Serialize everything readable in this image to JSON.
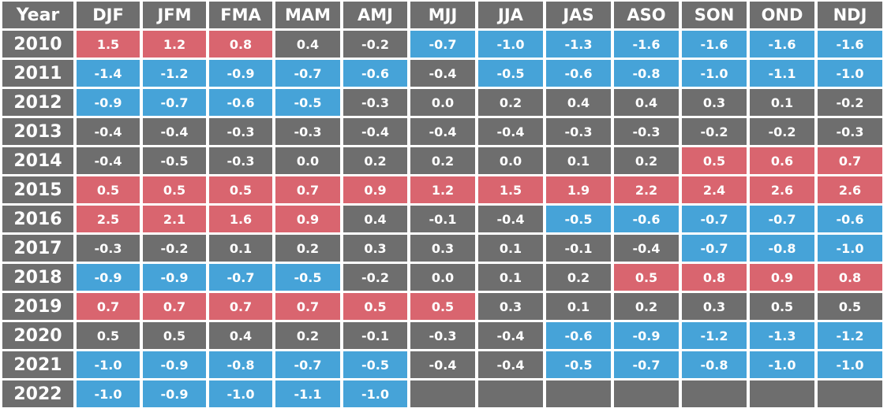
{
  "chart_data": {
    "type": "table",
    "corner_header": "Year",
    "columns": [
      "DJF",
      "JFM",
      "FMA",
      "MAM",
      "AMJ",
      "MJJ",
      "JJA",
      "JAS",
      "ASO",
      "SON",
      "OND",
      "NDJ"
    ],
    "rows": [
      {
        "year": "2010",
        "values": [
          "1.5",
          "1.2",
          "0.8",
          "0.4",
          "-0.2",
          "-0.7",
          "-1.0",
          "-1.3",
          "-1.6",
          "-1.6",
          "-1.6",
          "-1.6"
        ]
      },
      {
        "year": "2011",
        "values": [
          "-1.4",
          "-1.2",
          "-0.9",
          "-0.7",
          "-0.6",
          "-0.4",
          "-0.5",
          "-0.6",
          "-0.8",
          "-1.0",
          "-1.1",
          "-1.0"
        ]
      },
      {
        "year": "2012",
        "values": [
          "-0.9",
          "-0.7",
          "-0.6",
          "-0.5",
          "-0.3",
          "0.0",
          "0.2",
          "0.4",
          "0.4",
          "0.3",
          "0.1",
          "-0.2"
        ]
      },
      {
        "year": "2013",
        "values": [
          "-0.4",
          "-0.4",
          "-0.3",
          "-0.3",
          "-0.4",
          "-0.4",
          "-0.4",
          "-0.3",
          "-0.3",
          "-0.2",
          "-0.2",
          "-0.3"
        ]
      },
      {
        "year": "2014",
        "values": [
          "-0.4",
          "-0.5",
          "-0.3",
          "0.0",
          "0.2",
          "0.2",
          "0.0",
          "0.1",
          "0.2",
          "0.5",
          "0.6",
          "0.7"
        ]
      },
      {
        "year": "2015",
        "values": [
          "0.5",
          "0.5",
          "0.5",
          "0.7",
          "0.9",
          "1.2",
          "1.5",
          "1.9",
          "2.2",
          "2.4",
          "2.6",
          "2.6"
        ]
      },
      {
        "year": "2016",
        "values": [
          "2.5",
          "2.1",
          "1.6",
          "0.9",
          "0.4",
          "-0.1",
          "-0.4",
          "-0.5",
          "-0.6",
          "-0.7",
          "-0.7",
          "-0.6"
        ]
      },
      {
        "year": "2017",
        "values": [
          "-0.3",
          "-0.2",
          "0.1",
          "0.2",
          "0.3",
          "0.3",
          "0.1",
          "-0.1",
          "-0.4",
          "-0.7",
          "-0.8",
          "-1.0"
        ]
      },
      {
        "year": "2018",
        "values": [
          "-0.9",
          "-0.9",
          "-0.7",
          "-0.5",
          "-0.2",
          "0.0",
          "0.1",
          "0.2",
          "0.5",
          "0.8",
          "0.9",
          "0.8"
        ]
      },
      {
        "year": "2019",
        "values": [
          "0.7",
          "0.7",
          "0.7",
          "0.7",
          "0.5",
          "0.5",
          "0.3",
          "0.1",
          "0.2",
          "0.3",
          "0.5",
          "0.5"
        ]
      },
      {
        "year": "2020",
        "values": [
          "0.5",
          "0.5",
          "0.4",
          "0.2",
          "-0.1",
          "-0.3",
          "-0.4",
          "-0.6",
          "-0.9",
          "-1.2",
          "-1.3",
          "-1.2"
        ]
      },
      {
        "year": "2021",
        "values": [
          "-1.0",
          "-0.9",
          "-0.8",
          "-0.7",
          "-0.5",
          "-0.4",
          "-0.4",
          "-0.5",
          "-0.7",
          "-0.8",
          "-1.0",
          "-1.0"
        ]
      },
      {
        "year": "2022",
        "values": [
          "-1.0",
          "-0.9",
          "-1.0",
          "-1.1",
          "-1.0",
          "",
          "",
          "",
          "",
          "",
          "",
          ""
        ]
      }
    ],
    "cell_states": [
      [
        "warm",
        "warm",
        "warm",
        "neutral",
        "neutral",
        "cool",
        "cool",
        "cool",
        "cool",
        "cool",
        "cool",
        "cool"
      ],
      [
        "cool",
        "cool",
        "cool",
        "cool",
        "cool",
        "neutral",
        "cool",
        "cool",
        "cool",
        "cool",
        "cool",
        "cool"
      ],
      [
        "cool",
        "cool",
        "cool",
        "cool",
        "neutral",
        "neutral",
        "neutral",
        "neutral",
        "neutral",
        "neutral",
        "neutral",
        "neutral"
      ],
      [
        "neutral",
        "neutral",
        "neutral",
        "neutral",
        "neutral",
        "neutral",
        "neutral",
        "neutral",
        "neutral",
        "neutral",
        "neutral",
        "neutral"
      ],
      [
        "neutral",
        "neutral",
        "neutral",
        "neutral",
        "neutral",
        "neutral",
        "neutral",
        "neutral",
        "neutral",
        "warm",
        "warm",
        "warm"
      ],
      [
        "warm",
        "warm",
        "warm",
        "warm",
        "warm",
        "warm",
        "warm",
        "warm",
        "warm",
        "warm",
        "warm",
        "warm"
      ],
      [
        "warm",
        "warm",
        "warm",
        "warm",
        "neutral",
        "neutral",
        "neutral",
        "cool",
        "cool",
        "cool",
        "cool",
        "cool"
      ],
      [
        "neutral",
        "neutral",
        "neutral",
        "neutral",
        "neutral",
        "neutral",
        "neutral",
        "neutral",
        "neutral",
        "cool",
        "cool",
        "cool"
      ],
      [
        "cool",
        "cool",
        "cool",
        "cool",
        "neutral",
        "neutral",
        "neutral",
        "neutral",
        "warm",
        "warm",
        "warm",
        "warm"
      ],
      [
        "warm",
        "warm",
        "warm",
        "warm",
        "warm",
        "warm",
        "neutral",
        "neutral",
        "neutral",
        "neutral",
        "neutral",
        "neutral"
      ],
      [
        "neutral",
        "neutral",
        "neutral",
        "neutral",
        "neutral",
        "neutral",
        "neutral",
        "cool",
        "cool",
        "cool",
        "cool",
        "cool"
      ],
      [
        "cool",
        "cool",
        "cool",
        "cool",
        "cool",
        "neutral",
        "neutral",
        "cool",
        "cool",
        "cool",
        "cool",
        "cool"
      ],
      [
        "cool",
        "cool",
        "cool",
        "cool",
        "cool",
        "empty",
        "empty",
        "empty",
        "empty",
        "empty",
        "empty",
        "empty"
      ]
    ],
    "colors": {
      "warm": "#d9656f",
      "cool": "#46a3d8",
      "neutral": "#6e6e6e",
      "text": "#ffffff"
    }
  }
}
